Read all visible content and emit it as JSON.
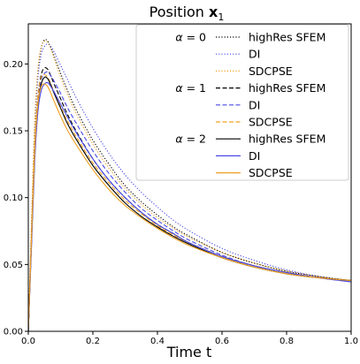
{
  "chart_data": {
    "type": "line",
    "title": "Position x₁",
    "title_base": "Position ",
    "title_symbol": "x",
    "title_subscript": "1",
    "xlabel": "Time t",
    "ylabel": "",
    "xlim": [
      0.0,
      1.0
    ],
    "ylim": [
      0.0,
      0.23
    ],
    "xticks": [
      "0.0",
      "0.2",
      "0.4",
      "0.6",
      "0.8",
      "1.0"
    ],
    "yticks": [
      "0.00",
      "0.05",
      "0.10",
      "0.15",
      "0.20"
    ],
    "grid": false,
    "legend_position": "top-right",
    "legend_groups": [
      {
        "symbol": "α",
        "label": "= 0"
      },
      {
        "symbol": "α",
        "label": "= 1"
      },
      {
        "symbol": "α",
        "label": "= 2"
      }
    ],
    "x": [
      0.0,
      0.01,
      0.02,
      0.03,
      0.04,
      0.05,
      0.06,
      0.07,
      0.08,
      0.1,
      0.12,
      0.15,
      0.2,
      0.25,
      0.3,
      0.35,
      0.4,
      0.45,
      0.5,
      0.6,
      0.7,
      0.8,
      0.9,
      1.0
    ],
    "series": [
      {
        "name": "highRes SFEM",
        "group": 0,
        "color": "#000000",
        "dash": "dotted",
        "values": [
          0.0,
          0.08,
          0.155,
          0.195,
          0.212,
          0.218,
          0.217,
          0.212,
          0.206,
          0.193,
          0.181,
          0.165,
          0.143,
          0.125,
          0.109,
          0.097,
          0.087,
          0.078,
          0.071,
          0.059,
          0.051,
          0.045,
          0.041,
          0.038
        ]
      },
      {
        "name": "DI",
        "group": 0,
        "color": "#4a4ae6",
        "dash": "dotted",
        "values": [
          0.0,
          0.075,
          0.15,
          0.19,
          0.207,
          0.213,
          0.215,
          0.213,
          0.209,
          0.199,
          0.189,
          0.174,
          0.152,
          0.133,
          0.117,
          0.104,
          0.093,
          0.083,
          0.075,
          0.062,
          0.053,
          0.046,
          0.041,
          0.037
        ]
      },
      {
        "name": "SDCPSE",
        "group": 0,
        "color": "#f0a020",
        "dash": "dotted",
        "values": [
          0.0,
          0.082,
          0.158,
          0.197,
          0.213,
          0.217,
          0.216,
          0.211,
          0.204,
          0.19,
          0.178,
          0.162,
          0.14,
          0.122,
          0.107,
          0.095,
          0.085,
          0.077,
          0.07,
          0.059,
          0.051,
          0.045,
          0.041,
          0.038
        ]
      },
      {
        "name": "highRes SFEM",
        "group": 1,
        "color": "#000000",
        "dash": "dashed",
        "values": [
          0.0,
          0.072,
          0.14,
          0.176,
          0.192,
          0.197,
          0.196,
          0.191,
          0.185,
          0.174,
          0.163,
          0.149,
          0.129,
          0.113,
          0.1,
          0.089,
          0.08,
          0.073,
          0.066,
          0.056,
          0.049,
          0.044,
          0.04,
          0.038
        ]
      },
      {
        "name": "DI",
        "group": 1,
        "color": "#4a4ae6",
        "dash": "dashed",
        "values": [
          0.0,
          0.068,
          0.135,
          0.172,
          0.188,
          0.193,
          0.194,
          0.191,
          0.187,
          0.178,
          0.168,
          0.155,
          0.135,
          0.118,
          0.104,
          0.092,
          0.083,
          0.075,
          0.068,
          0.057,
          0.049,
          0.044,
          0.04,
          0.037
        ]
      },
      {
        "name": "SDCPSE",
        "group": 1,
        "color": "#f0a020",
        "dash": "dashed",
        "values": [
          0.0,
          0.074,
          0.142,
          0.177,
          0.19,
          0.192,
          0.19,
          0.185,
          0.179,
          0.168,
          0.158,
          0.145,
          0.126,
          0.111,
          0.098,
          0.088,
          0.079,
          0.072,
          0.066,
          0.056,
          0.049,
          0.044,
          0.04,
          0.038
        ]
      },
      {
        "name": "highRes SFEM",
        "group": 2,
        "color": "#000000",
        "dash": "solid",
        "values": [
          0.0,
          0.068,
          0.134,
          0.17,
          0.185,
          0.19,
          0.189,
          0.184,
          0.178,
          0.167,
          0.156,
          0.143,
          0.124,
          0.109,
          0.096,
          0.086,
          0.078,
          0.071,
          0.065,
          0.055,
          0.048,
          0.043,
          0.04,
          0.038
        ]
      },
      {
        "name": "DI",
        "group": 2,
        "color": "#4a4ae6",
        "dash": "solid",
        "values": [
          0.0,
          0.064,
          0.128,
          0.165,
          0.18,
          0.185,
          0.186,
          0.183,
          0.179,
          0.17,
          0.161,
          0.148,
          0.129,
          0.113,
          0.1,
          0.089,
          0.08,
          0.073,
          0.066,
          0.056,
          0.049,
          0.044,
          0.04,
          0.037
        ]
      },
      {
        "name": "SDCPSE",
        "group": 2,
        "color": "#f0a020",
        "dash": "solid",
        "values": [
          0.0,
          0.07,
          0.136,
          0.171,
          0.183,
          0.185,
          0.183,
          0.178,
          0.172,
          0.161,
          0.151,
          0.139,
          0.121,
          0.106,
          0.094,
          0.085,
          0.077,
          0.07,
          0.064,
          0.055,
          0.048,
          0.043,
          0.04,
          0.038
        ]
      }
    ]
  }
}
